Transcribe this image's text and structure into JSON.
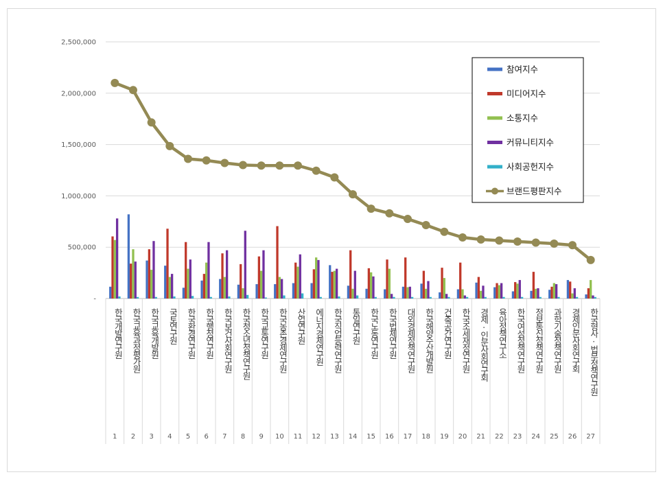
{
  "chart_data": {
    "type": "bar",
    "title": "",
    "xlabel": "",
    "ylabel": "",
    "ylim": [
      0,
      2500000
    ],
    "yticks": [
      0,
      500000,
      1000000,
      1500000,
      2000000,
      2500000
    ],
    "ytick_labels": [
      "-",
      "500,000",
      "1,000,000",
      "1,500,000",
      "2,000,000",
      "2,500,000"
    ],
    "grid": true,
    "legend_position": "top-right",
    "categories": [
      "한국개발연구원",
      "한국교육과정평가원",
      "한국교육개발원",
      "국토연구원",
      "한국환경연구원",
      "한국행정연구원",
      "한국보건사회연구원",
      "한국청소년정책연구원",
      "한국교통연구원",
      "한국농촌경제연구원",
      "산업연구원",
      "에너지경제연구원",
      "한국직업능력연구원",
      "통일연구원",
      "한국노동연구원",
      "한국법제연구원",
      "대외경제정책연구원",
      "한국해양수산개발원",
      "건축공간연구원",
      "한국조세재정연구원",
      "경제·인문사회연구회",
      "육아정책연구소",
      "한국여성정책연구원",
      "정보통신정책연구원",
      "과학기술정책연구원",
      "경제인문사회연구회",
      "한국형사·법무정책연구원"
    ],
    "category_display": [
      "한국개발연구원",
      "한국교육과정평가원",
      "한국교육개발원",
      "국토연구원",
      "한국환경연구원",
      "한국행정연구원",
      "한국보건사회연구원",
      "한국청소년정책연구원",
      "한국교통연구원",
      "한국농촌경제연구원",
      "산업연구원",
      "에너지경제연구원",
      "한국직업능력연구원",
      "통일연구원",
      "한국노동연구원",
      "한국법제연구원",
      "대외경제정책연구원",
      "한국해양수산개발원",
      "건축공간연구원",
      "한국조세재정연구원",
      "경제·인문사회연구회",
      "육아정책연구소",
      "한국여성정책연구원",
      "정보통신정책연구원",
      "과학기술정책연구원",
      "경제인문사회연구회",
      "한국형사·법무정책연구원"
    ],
    "category_numbers": [
      "1",
      "2",
      "3",
      "4",
      "5",
      "6",
      "7",
      "8",
      "9",
      "10",
      "11",
      "12",
      "13",
      "14",
      "15",
      "16",
      "17",
      "18",
      "19",
      "20",
      "21",
      "22",
      "23",
      "24",
      "25",
      "26",
      "27"
    ],
    "series": [
      {
        "name": "참여지수",
        "color": "#4472c4",
        "values": [
          115000,
          820000,
          370000,
          320000,
          105000,
          175000,
          190000,
          135000,
          140000,
          140000,
          150000,
          150000,
          325000,
          125000,
          95000,
          90000,
          115000,
          145000,
          60000,
          90000,
          155000,
          110000,
          70000,
          75000,
          85000,
          180000,
          40000
        ]
      },
      {
        "name": "미디어지수",
        "color": "#c0392b",
        "values": [
          605000,
          340000,
          480000,
          680000,
          550000,
          240000,
          440000,
          335000,
          410000,
          705000,
          350000,
          285000,
          260000,
          470000,
          295000,
          380000,
          400000,
          270000,
          300000,
          350000,
          210000,
          150000,
          160000,
          260000,
          115000,
          165000,
          100000
        ]
      },
      {
        "name": "소통지수",
        "color": "#92c050",
        "values": [
          570000,
          480000,
          280000,
          210000,
          290000,
          350000,
          210000,
          100000,
          270000,
          210000,
          310000,
          400000,
          270000,
          95000,
          255000,
          290000,
          110000,
          95000,
          200000,
          90000,
          75000,
          130000,
          145000,
          95000,
          150000,
          50000,
          180000
        ]
      },
      {
        "name": "커뮤니티지수",
        "color": "#7030a0",
        "values": [
          780000,
          360000,
          560000,
          240000,
          380000,
          550000,
          470000,
          660000,
          470000,
          190000,
          430000,
          375000,
          290000,
          270000,
          215000,
          45000,
          115000,
          170000,
          45000,
          30000,
          125000,
          150000,
          180000,
          100000,
          140000,
          100000,
          30000
        ]
      },
      {
        "name": "사회공헌지수",
        "color": "#33b0c9",
        "values": [
          20000,
          15000,
          15000,
          20000,
          25000,
          15000,
          20000,
          35000,
          10000,
          30000,
          50000,
          15000,
          20000,
          30000,
          15000,
          15000,
          15000,
          15000,
          15000,
          15000,
          15000,
          15000,
          15000,
          15000,
          15000,
          15000,
          15000
        ]
      }
    ],
    "line_series": {
      "name": "브랜드평판지수",
      "color": "#948a54",
      "values": [
        2100000,
        2030000,
        1715000,
        1485000,
        1360000,
        1345000,
        1320000,
        1300000,
        1295000,
        1295000,
        1295000,
        1245000,
        1180000,
        1015000,
        875000,
        830000,
        775000,
        715000,
        650000,
        595000,
        575000,
        565000,
        555000,
        545000,
        535000,
        520000,
        375000
      ]
    }
  }
}
